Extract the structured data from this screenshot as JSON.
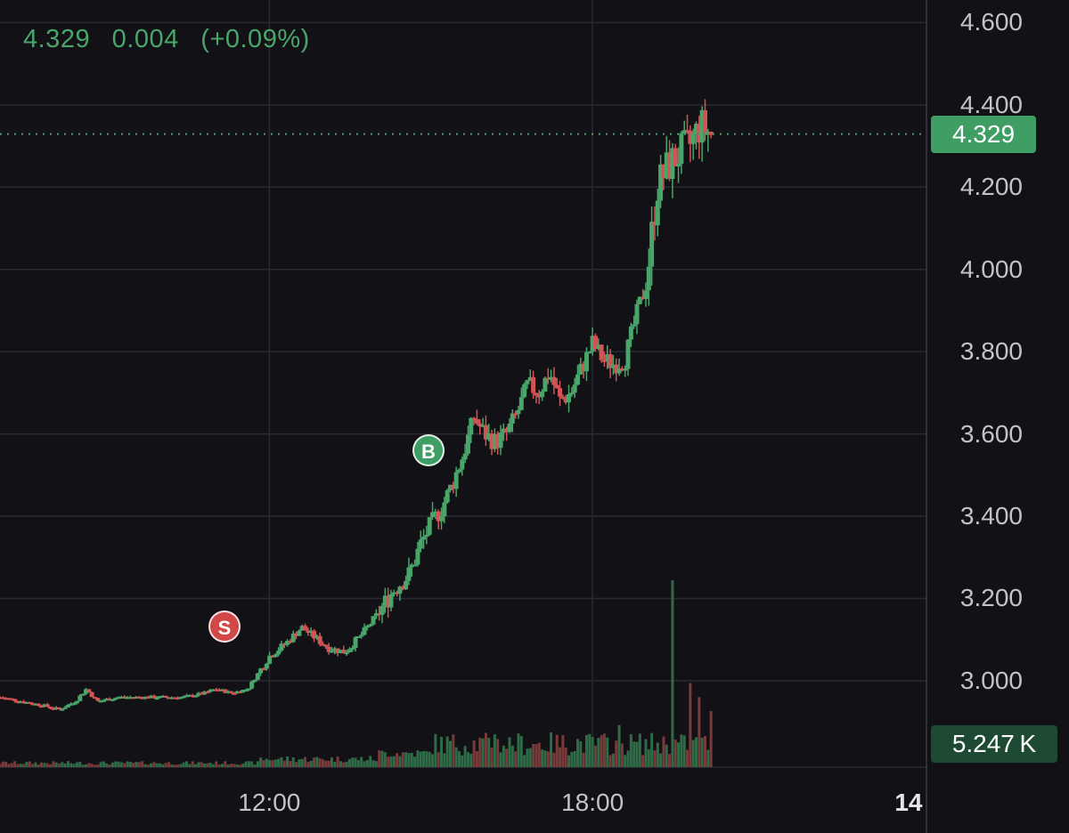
{
  "header": {
    "price": "4.329",
    "change": "0.004",
    "change_pct": "(+0.09%)"
  },
  "colors": {
    "up": "#4aa56b",
    "down": "#d25555",
    "grid": "#2a2a33",
    "background": "#111116"
  },
  "last_price_badge": "4.329",
  "volume_badge": "5.247 K",
  "markers": {
    "sell": "S",
    "buy": "B"
  },
  "chart_data": {
    "type": "candlestick",
    "title": "",
    "ylim": [
      2.79,
      4.655
    ],
    "yticks": [
      "4.600",
      "4.400",
      "4.200",
      "4.000",
      "3.800",
      "3.600",
      "3.400",
      "3.200",
      "3.000"
    ],
    "ytick_values": [
      4.6,
      4.4,
      4.2,
      4.0,
      3.8,
      3.6,
      3.4,
      3.2,
      3.0
    ],
    "xticks": [
      "12:00",
      "18:00",
      "14"
    ],
    "xtick_hours": [
      12.0,
      18.0,
      24.0
    ],
    "x_range_hours": [
      7.0,
      24.2
    ],
    "last_price": 4.329,
    "close_path": [
      [
        7.0,
        2.96
      ],
      [
        7.4,
        2.95
      ],
      [
        7.8,
        2.94
      ],
      [
        8.1,
        2.93
      ],
      [
        8.4,
        2.95
      ],
      [
        8.6,
        2.98
      ],
      [
        8.8,
        2.95
      ],
      [
        9.2,
        2.96
      ],
      [
        9.6,
        2.96
      ],
      [
        10.0,
        2.96
      ],
      [
        10.4,
        2.96
      ],
      [
        10.8,
        2.97
      ],
      [
        11.0,
        2.98
      ],
      [
        11.3,
        2.97
      ],
      [
        11.6,
        2.98
      ],
      [
        11.8,
        3.02
      ],
      [
        12.0,
        3.06
      ],
      [
        12.3,
        3.09
      ],
      [
        12.6,
        3.13
      ],
      [
        12.8,
        3.11
      ],
      [
        13.1,
        3.08
      ],
      [
        13.4,
        3.07
      ],
      [
        13.7,
        3.11
      ],
      [
        14.0,
        3.16
      ],
      [
        14.3,
        3.22
      ],
      [
        14.6,
        3.26
      ],
      [
        14.8,
        3.33
      ],
      [
        15.0,
        3.38
      ],
      [
        15.2,
        3.42
      ],
      [
        15.4,
        3.48
      ],
      [
        15.6,
        3.55
      ],
      [
        15.8,
        3.64
      ],
      [
        16.0,
        3.6
      ],
      [
        16.2,
        3.58
      ],
      [
        16.4,
        3.6
      ],
      [
        16.6,
        3.65
      ],
      [
        16.8,
        3.72
      ],
      [
        17.0,
        3.7
      ],
      [
        17.2,
        3.75
      ],
      [
        17.4,
        3.68
      ],
      [
        17.6,
        3.7
      ],
      [
        17.8,
        3.76
      ],
      [
        18.0,
        3.82
      ],
      [
        18.2,
        3.78
      ],
      [
        18.4,
        3.77
      ],
      [
        18.6,
        3.78
      ],
      [
        18.8,
        3.88
      ],
      [
        19.0,
        3.97
      ],
      [
        19.2,
        4.2
      ],
      [
        19.4,
        4.25
      ],
      [
        19.6,
        4.28
      ],
      [
        19.8,
        4.3
      ],
      [
        20.0,
        4.35
      ],
      [
        20.2,
        4.329
      ]
    ],
    "volume_scale_max": 4.0,
    "volume_spikes": [
      [
        16.2,
        0.7
      ],
      [
        17.7,
        0.6
      ],
      [
        18.5,
        0.9
      ],
      [
        19.5,
        4.0
      ],
      [
        19.8,
        1.8
      ],
      [
        20.0,
        1.5
      ],
      [
        20.2,
        1.2
      ]
    ]
  }
}
